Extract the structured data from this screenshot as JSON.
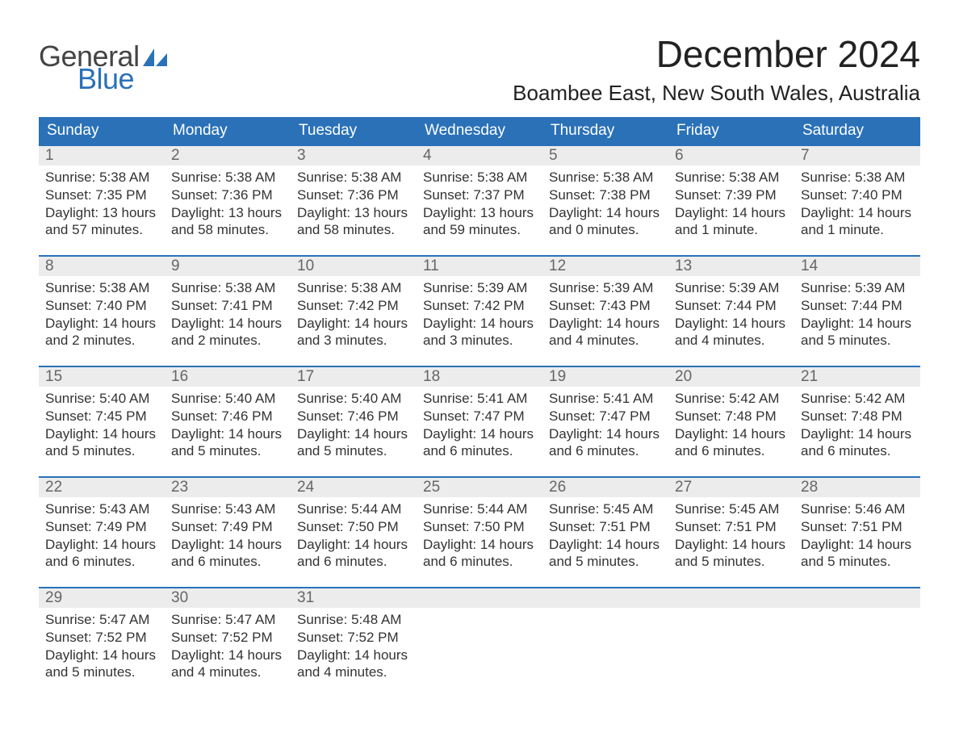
{
  "brand": {
    "text_general": "General",
    "text_blue": "Blue",
    "sail_color": "#2a71b8",
    "general_color": "#444444",
    "blue_color": "#2a71b8"
  },
  "title": {
    "month": "December 2024",
    "location": "Boambee East, New South Wales, Australia"
  },
  "colors": {
    "header_bg": "#2a71b8",
    "header_text": "#ffffff",
    "daynum_bg": "#ececec",
    "daynum_text": "#666666",
    "body_text": "#333333",
    "week_border": "#2a71b8",
    "page_bg": "#ffffff"
  },
  "fonts": {
    "month_title_size": 46,
    "location_size": 26,
    "dow_size": 19,
    "daynum_size": 19,
    "body_size": 17
  },
  "calendar": {
    "columns": 7,
    "day_names": [
      "Sunday",
      "Monday",
      "Tuesday",
      "Wednesday",
      "Thursday",
      "Friday",
      "Saturday"
    ],
    "weeks": [
      [
        {
          "n": "1",
          "sunrise": "Sunrise: 5:38 AM",
          "sunset": "Sunset: 7:35 PM",
          "d1": "Daylight: 13 hours",
          "d2": "and 57 minutes."
        },
        {
          "n": "2",
          "sunrise": "Sunrise: 5:38 AM",
          "sunset": "Sunset: 7:36 PM",
          "d1": "Daylight: 13 hours",
          "d2": "and 58 minutes."
        },
        {
          "n": "3",
          "sunrise": "Sunrise: 5:38 AM",
          "sunset": "Sunset: 7:36 PM",
          "d1": "Daylight: 13 hours",
          "d2": "and 58 minutes."
        },
        {
          "n": "4",
          "sunrise": "Sunrise: 5:38 AM",
          "sunset": "Sunset: 7:37 PM",
          "d1": "Daylight: 13 hours",
          "d2": "and 59 minutes."
        },
        {
          "n": "5",
          "sunrise": "Sunrise: 5:38 AM",
          "sunset": "Sunset: 7:38 PM",
          "d1": "Daylight: 14 hours",
          "d2": "and 0 minutes."
        },
        {
          "n": "6",
          "sunrise": "Sunrise: 5:38 AM",
          "sunset": "Sunset: 7:39 PM",
          "d1": "Daylight: 14 hours",
          "d2": "and 1 minute."
        },
        {
          "n": "7",
          "sunrise": "Sunrise: 5:38 AM",
          "sunset": "Sunset: 7:40 PM",
          "d1": "Daylight: 14 hours",
          "d2": "and 1 minute."
        }
      ],
      [
        {
          "n": "8",
          "sunrise": "Sunrise: 5:38 AM",
          "sunset": "Sunset: 7:40 PM",
          "d1": "Daylight: 14 hours",
          "d2": "and 2 minutes."
        },
        {
          "n": "9",
          "sunrise": "Sunrise: 5:38 AM",
          "sunset": "Sunset: 7:41 PM",
          "d1": "Daylight: 14 hours",
          "d2": "and 2 minutes."
        },
        {
          "n": "10",
          "sunrise": "Sunrise: 5:38 AM",
          "sunset": "Sunset: 7:42 PM",
          "d1": "Daylight: 14 hours",
          "d2": "and 3 minutes."
        },
        {
          "n": "11",
          "sunrise": "Sunrise: 5:39 AM",
          "sunset": "Sunset: 7:42 PM",
          "d1": "Daylight: 14 hours",
          "d2": "and 3 minutes."
        },
        {
          "n": "12",
          "sunrise": "Sunrise: 5:39 AM",
          "sunset": "Sunset: 7:43 PM",
          "d1": "Daylight: 14 hours",
          "d2": "and 4 minutes."
        },
        {
          "n": "13",
          "sunrise": "Sunrise: 5:39 AM",
          "sunset": "Sunset: 7:44 PM",
          "d1": "Daylight: 14 hours",
          "d2": "and 4 minutes."
        },
        {
          "n": "14",
          "sunrise": "Sunrise: 5:39 AM",
          "sunset": "Sunset: 7:44 PM",
          "d1": "Daylight: 14 hours",
          "d2": "and 5 minutes."
        }
      ],
      [
        {
          "n": "15",
          "sunrise": "Sunrise: 5:40 AM",
          "sunset": "Sunset: 7:45 PM",
          "d1": "Daylight: 14 hours",
          "d2": "and 5 minutes."
        },
        {
          "n": "16",
          "sunrise": "Sunrise: 5:40 AM",
          "sunset": "Sunset: 7:46 PM",
          "d1": "Daylight: 14 hours",
          "d2": "and 5 minutes."
        },
        {
          "n": "17",
          "sunrise": "Sunrise: 5:40 AM",
          "sunset": "Sunset: 7:46 PM",
          "d1": "Daylight: 14 hours",
          "d2": "and 5 minutes."
        },
        {
          "n": "18",
          "sunrise": "Sunrise: 5:41 AM",
          "sunset": "Sunset: 7:47 PM",
          "d1": "Daylight: 14 hours",
          "d2": "and 6 minutes."
        },
        {
          "n": "19",
          "sunrise": "Sunrise: 5:41 AM",
          "sunset": "Sunset: 7:47 PM",
          "d1": "Daylight: 14 hours",
          "d2": "and 6 minutes."
        },
        {
          "n": "20",
          "sunrise": "Sunrise: 5:42 AM",
          "sunset": "Sunset: 7:48 PM",
          "d1": "Daylight: 14 hours",
          "d2": "and 6 minutes."
        },
        {
          "n": "21",
          "sunrise": "Sunrise: 5:42 AM",
          "sunset": "Sunset: 7:48 PM",
          "d1": "Daylight: 14 hours",
          "d2": "and 6 minutes."
        }
      ],
      [
        {
          "n": "22",
          "sunrise": "Sunrise: 5:43 AM",
          "sunset": "Sunset: 7:49 PM",
          "d1": "Daylight: 14 hours",
          "d2": "and 6 minutes."
        },
        {
          "n": "23",
          "sunrise": "Sunrise: 5:43 AM",
          "sunset": "Sunset: 7:49 PM",
          "d1": "Daylight: 14 hours",
          "d2": "and 6 minutes."
        },
        {
          "n": "24",
          "sunrise": "Sunrise: 5:44 AM",
          "sunset": "Sunset: 7:50 PM",
          "d1": "Daylight: 14 hours",
          "d2": "and 6 minutes."
        },
        {
          "n": "25",
          "sunrise": "Sunrise: 5:44 AM",
          "sunset": "Sunset: 7:50 PM",
          "d1": "Daylight: 14 hours",
          "d2": "and 6 minutes."
        },
        {
          "n": "26",
          "sunrise": "Sunrise: 5:45 AM",
          "sunset": "Sunset: 7:51 PM",
          "d1": "Daylight: 14 hours",
          "d2": "and 5 minutes."
        },
        {
          "n": "27",
          "sunrise": "Sunrise: 5:45 AM",
          "sunset": "Sunset: 7:51 PM",
          "d1": "Daylight: 14 hours",
          "d2": "and 5 minutes."
        },
        {
          "n": "28",
          "sunrise": "Sunrise: 5:46 AM",
          "sunset": "Sunset: 7:51 PM",
          "d1": "Daylight: 14 hours",
          "d2": "and 5 minutes."
        }
      ],
      [
        {
          "n": "29",
          "sunrise": "Sunrise: 5:47 AM",
          "sunset": "Sunset: 7:52 PM",
          "d1": "Daylight: 14 hours",
          "d2": "and 5 minutes."
        },
        {
          "n": "30",
          "sunrise": "Sunrise: 5:47 AM",
          "sunset": "Sunset: 7:52 PM",
          "d1": "Daylight: 14 hours",
          "d2": "and 4 minutes."
        },
        {
          "n": "31",
          "sunrise": "Sunrise: 5:48 AM",
          "sunset": "Sunset: 7:52 PM",
          "d1": "Daylight: 14 hours",
          "d2": "and 4 minutes."
        },
        {
          "empty": true
        },
        {
          "empty": true
        },
        {
          "empty": true
        },
        {
          "empty": true
        }
      ]
    ]
  }
}
